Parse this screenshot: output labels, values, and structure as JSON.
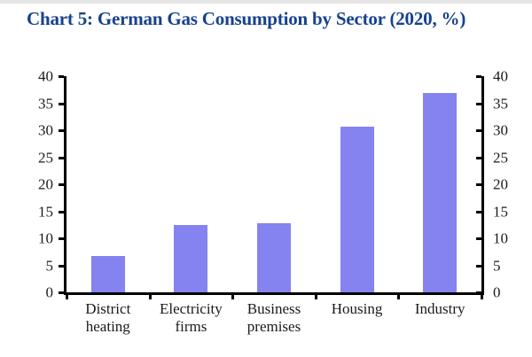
{
  "page": {
    "title": "Chart 5: German Gas Consumption by Sector (2020, %)"
  },
  "colors": {
    "title": "#17418F",
    "bar": "#8583EF",
    "axis": "#000000",
    "text": "#1a1a1a",
    "top_strip": "#e5e5e5",
    "background": "#ffffff"
  },
  "chart_data": {
    "type": "bar",
    "title": "Chart 5: German Gas Consumption by Sector (2020, %)",
    "categories": [
      "District\nheating",
      "Electricity\nfirms",
      "Business\npremises",
      "Housing",
      "Industry"
    ],
    "values": [
      6.8,
      12.5,
      12.8,
      30.7,
      36.9
    ],
    "xlabel": "",
    "ylabel": "",
    "ylim": [
      0,
      40
    ],
    "yticks": [
      0,
      5,
      10,
      15,
      20,
      25,
      30,
      35,
      40
    ],
    "grid": false,
    "legend": "none",
    "dual_y_axis": true,
    "bar_color": "#8583EF"
  }
}
